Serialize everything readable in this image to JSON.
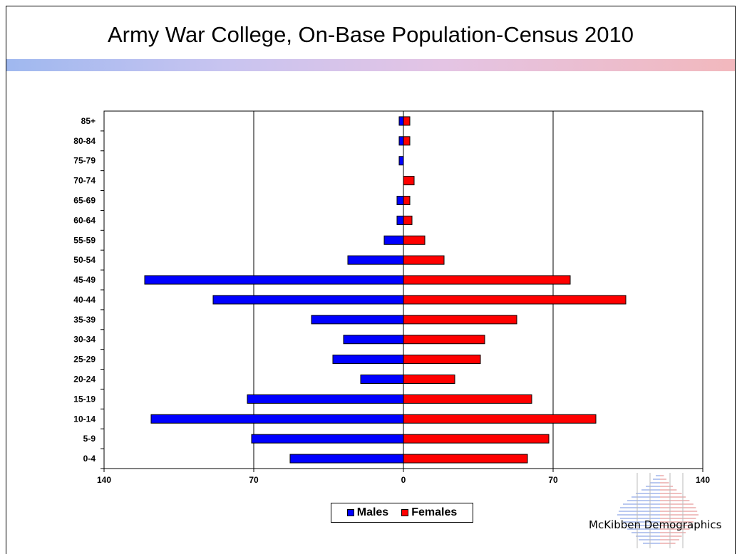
{
  "slide": {
    "title": "Army War College,  On-Base Population-Census 2010",
    "logo_text": "McKibben Demographics"
  },
  "legend": {
    "males_label": "Males",
    "females_label": "Females"
  },
  "colors": {
    "males": "#0000ff",
    "females": "#ff0000"
  },
  "chart_data": {
    "type": "bar",
    "orientation": "horizontal-population-pyramid",
    "title": "Army War College,  On-Base Population-Census 2010",
    "categories": [
      "0-4",
      "5-9",
      "10-14",
      "15-19",
      "20-24",
      "25-29",
      "30-34",
      "35-39",
      "40-44",
      "45-49",
      "50-54",
      "55-59",
      "60-64",
      "65-69",
      "70-74",
      "75-79",
      "80-84",
      "85+"
    ],
    "series": [
      {
        "name": "Males",
        "values": [
          53,
          71,
          118,
          73,
          20,
          33,
          28,
          43,
          89,
          121,
          26,
          9,
          3,
          3,
          0,
          2,
          2,
          2
        ]
      },
      {
        "name": "Females",
        "values": [
          58,
          68,
          90,
          60,
          24,
          36,
          38,
          53,
          104,
          78,
          19,
          10,
          4,
          3,
          5,
          0,
          3,
          3
        ]
      }
    ],
    "xlim": [
      -140,
      140
    ],
    "x_ticks": [
      "140",
      "70",
      "0",
      "70",
      "140"
    ],
    "grid": "vertical gridlines at 70",
    "legend_position": "bottom"
  }
}
